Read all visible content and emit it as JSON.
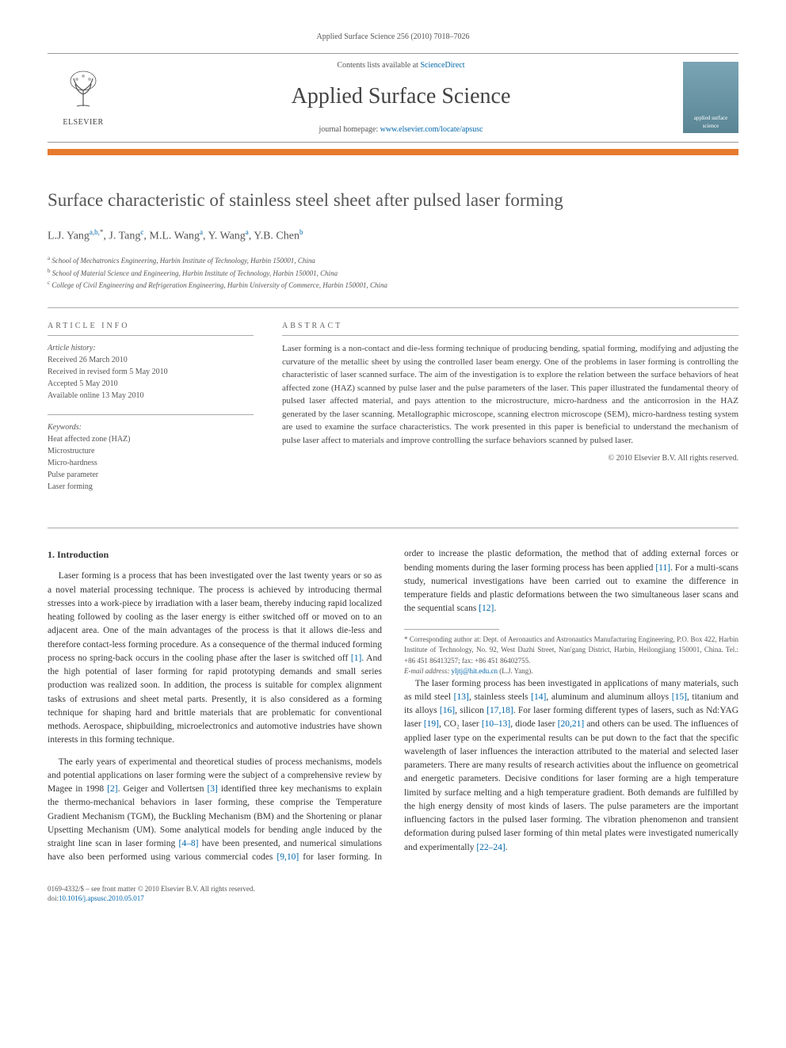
{
  "header": {
    "running_head": "Applied Surface Science 256 (2010) 7018–7026",
    "contents_prefix": "Contents lists available at ",
    "contents_link": "ScienceDirect",
    "journal_title": "Applied Surface Science",
    "homepage_prefix": "journal homepage: ",
    "homepage_url": "www.elsevier.com/locate/apsusc",
    "publisher_name": "ELSEVIER",
    "cover_text": "applied surface science"
  },
  "colors": {
    "accent_orange": "#e67a2e",
    "link_blue": "#0066aa",
    "text_gray": "#555555",
    "rule_gray": "#aaaaaa",
    "cover_top": "#7aa5b5",
    "cover_bottom": "#5a8595"
  },
  "article": {
    "title": "Surface characteristic of stainless steel sheet after pulsed laser forming",
    "authors_html": "L.J. Yang",
    "authors": [
      {
        "name": "L.J. Yang",
        "affil": "a,b,*"
      },
      {
        "name": "J. Tang",
        "affil": "c"
      },
      {
        "name": "M.L. Wang",
        "affil": "a"
      },
      {
        "name": "Y. Wang",
        "affil": "a"
      },
      {
        "name": "Y.B. Chen",
        "affil": "b"
      }
    ],
    "affiliations": [
      "School of Mechatronics Engineering, Harbin Institute of Technology, Harbin 150001, China",
      "School of Material Science and Engineering, Harbin Institute of Technology, Harbin 150001, China",
      "College of Civil Engineering and Refrigeration Engineering, Harbin University of Commerce, Harbin 150001, China"
    ],
    "affil_markers": [
      "a",
      "b",
      "c"
    ]
  },
  "info": {
    "heading": "ARTICLE INFO",
    "history_label": "Article history:",
    "history": [
      "Received 26 March 2010",
      "Received in revised form 5 May 2010",
      "Accepted 5 May 2010",
      "Available online 13 May 2010"
    ],
    "keywords_label": "Keywords:",
    "keywords": [
      "Heat affected zone (HAZ)",
      "Microstructure",
      "Micro-hardness",
      "Pulse parameter",
      "Laser forming"
    ]
  },
  "abstract": {
    "heading": "ABSTRACT",
    "body": "Laser forming is a non-contact and die-less forming technique of producing bending, spatial forming, modifying and adjusting the curvature of the metallic sheet by using the controlled laser beam energy. One of the problems in laser forming is controlling the characteristic of laser scanned surface. The aim of the investigation is to explore the relation between the surface behaviors of heat affected zone (HAZ) scanned by pulse laser and the pulse parameters of the laser. This paper illustrated the fundamental theory of pulsed laser affected material, and pays attention to the microstructure, micro-hardness and the anticorrosion in the HAZ generated by the laser scanning. Metallographic microscope, scanning electron microscope (SEM), micro-hardness testing system are used to examine the surface characteristics. The work presented in this paper is beneficial to understand the mechanism of pulse laser affect to materials and improve controlling the surface behaviors scanned by pulsed laser.",
    "copyright": "© 2010 Elsevier B.V. All rights reserved."
  },
  "body": {
    "section_heading": "1.  Introduction",
    "p1": "Laser forming is a process that has been investigated over the last twenty years or so as a novel material processing technique. The process is achieved by introducing thermal stresses into a work-piece by irradiation with a laser beam, thereby inducing rapid localized heating followed by cooling as the laser energy is either switched off or moved on to an adjacent area. One of the main advantages of the process is that it allows die-less and therefore contact-less forming procedure. As a consequence of the thermal induced forming process no spring-back occurs in the cooling phase after the laser is switched off [1]. And the high potential of laser forming for rapid prototyping demands and small series production was realized soon. In addition, the process is suitable for complex alignment tasks of extrusions and sheet metal parts. Presently, it is also considered as a forming technique for shaping hard and brittle materials that are problematic for conventional methods. Aerospace, shipbuilding, microelectronics and automotive industries have shown interests in this forming technique.",
    "p2": "The early years of experimental and theoretical studies of process mechanisms, models and potential applications on laser forming were the subject of a comprehensive review by Magee in 1998 [2]. Geiger and Vollertsen [3] identified three key mechanisms to explain the thermo-mechanical behaviors in laser forming, these comprise the Temperature Gradient Mechanism (TGM), the Buckling Mechanism (BM) and the Shortening or planar Upsetting Mechanism (UM). Some analytical models for bending angle induced by the straight line scan in laser forming [4–8] have been presented, and numerical simulations have also been performed using various commercial codes [9,10] for laser forming. In order to increase the plastic deformation, the method that of adding external forces or bending moments during the laser forming process has been applied [11]. For a multi-scans study, numerical investigations have been carried out to examine the difference in temperature fields and plastic deformations between the two simultaneous laser scans and the sequential scans [12].",
    "p3": "The laser forming process has been investigated in applications of many materials, such as mild steel [13], stainless steels [14], aluminum and aluminum alloys [15], titanium and its alloys [16], silicon [17,18]. For laser forming different types of lasers, such as Nd:YAG laser [19], CO₂ laser [10–13], diode laser [20,21] and others can be used. The influences of applied laser type on the experimental results can be put down to the fact that the specific wavelength of laser influences the interaction attributed to the material and selected laser parameters. There are many results of research activities about the influence on geometrical and energetic parameters. Decisive conditions for laser forming are a high temperature limited by surface melting and a high temperature gradient. Both demands are fulfilled by the high energy density of most kinds of lasers. The pulse parameters are the important influencing factors in the pulsed laser forming. The vibration phenomenon and transient deformation during pulsed laser forming of thin metal plates were investigated numerically and experimentally [22–24].",
    "refs": [
      "[1]",
      "[2]",
      "[3]",
      "[4–8]",
      "[9,10]",
      "[11]",
      "[12]",
      "[13]",
      "[14]",
      "[15]",
      "[16]",
      "[17,18]",
      "[19]",
      "[10–13]",
      "[20,21]",
      "[22–24]"
    ]
  },
  "footnotes": {
    "corresponding": "* Corresponding author at: Dept. of Aeronautics and Astronautics Manufacturing Engineering, P.O. Box 422, Harbin Institute of Technology, No. 92, West Dazhi Street, Nan'gang District, Harbin, Heilongjiang 150001, China. Tel.: +86 451 86413257; fax: +86 451 86402755.",
    "email_label": "E-mail address: ",
    "email": "yljtj@hit.edu.cn",
    "email_suffix": " (L.J. Yang)."
  },
  "footer": {
    "issn_line": "0169-4332/$ – see front matter © 2010 Elsevier B.V. All rights reserved.",
    "doi_label": "doi:",
    "doi": "10.1016/j.apsusc.2010.05.017"
  }
}
